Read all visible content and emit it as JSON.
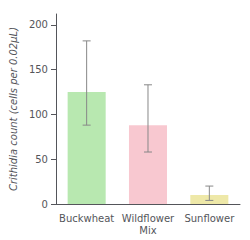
{
  "chart_data": {
    "type": "bar",
    "categories": [
      "Buckwheat",
      "Wildflower\nMix",
      "Sunflower"
    ],
    "values": [
      125,
      88,
      10
    ],
    "error_upper": [
      57,
      45,
      10
    ],
    "error_lower": [
      37,
      30,
      6
    ],
    "colors": [
      "#b8e8b0",
      "#f8c8d0",
      "#eee8a8"
    ],
    "ylabel": "Crithidia count (cells per 0.02µL)",
    "ylim": [
      0,
      212
    ],
    "yticks": [
      0,
      50,
      100,
      150,
      200
    ],
    "grid": false
  }
}
